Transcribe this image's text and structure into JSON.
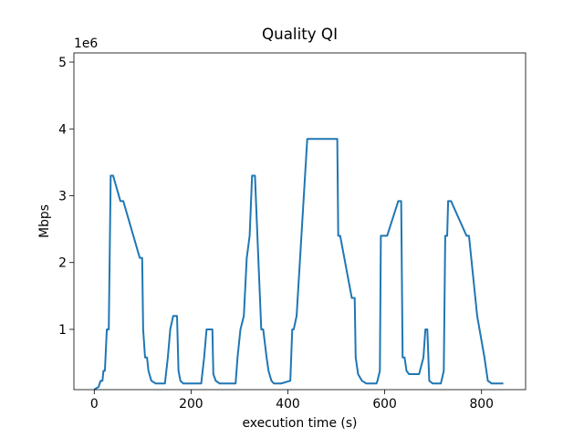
{
  "chart_data": {
    "type": "line",
    "title": "Quality QI",
    "x_label": "execution time (s)",
    "y_label": "Mbps",
    "y_offset_label": "1e6",
    "x": [
      0,
      9,
      13,
      17,
      19,
      22,
      26,
      30,
      34,
      39,
      54,
      60,
      94,
      99,
      101,
      105,
      109,
      112,
      118,
      127,
      146,
      152,
      157,
      163,
      171,
      174,
      178,
      184,
      221,
      227,
      232,
      244,
      246,
      251,
      259,
      292,
      296,
      302,
      309,
      315,
      321,
      326,
      332,
      337,
      345,
      349,
      356,
      360,
      366,
      371,
      386,
      405,
      409,
      412,
      418,
      440,
      502,
      504,
      508,
      532,
      538,
      540,
      545,
      553,
      562,
      583,
      585,
      590,
      592,
      605,
      628,
      634,
      637,
      641,
      645,
      650,
      671,
      680,
      684,
      688,
      692,
      699,
      716,
      722,
      725,
      729,
      731,
      737,
      769,
      774,
      791,
      806,
      813,
      821,
      845
    ],
    "series": [
      {
        "color": "#1f77b4",
        "values": [
          100000,
          140000,
          230000,
          230000,
          380000,
          380000,
          1000000,
          1000000,
          3300000,
          3300000,
          2920000,
          2920000,
          2070000,
          2070000,
          1000000,
          580000,
          580000,
          380000,
          230000,
          190000,
          190000,
          580000,
          1000000,
          1200000,
          1200000,
          380000,
          230000,
          190000,
          190000,
          580000,
          1000000,
          1000000,
          330000,
          230000,
          190000,
          190000,
          580000,
          1000000,
          1200000,
          2070000,
          2400000,
          3300000,
          3300000,
          2400000,
          1000000,
          1000000,
          580000,
          380000,
          230000,
          190000,
          190000,
          230000,
          1000000,
          1000000,
          1200000,
          3850000,
          3850000,
          2400000,
          2400000,
          1470000,
          1470000,
          580000,
          330000,
          230000,
          190000,
          190000,
          230000,
          380000,
          2400000,
          2400000,
          2920000,
          2920000,
          580000,
          580000,
          380000,
          330000,
          330000,
          580000,
          1000000,
          1000000,
          230000,
          190000,
          190000,
          380000,
          2400000,
          2400000,
          2920000,
          2920000,
          2400000,
          2400000,
          1200000,
          580000,
          230000,
          190000,
          190000
        ]
      }
    ],
    "xlim": [
      -42,
      891
    ],
    "xticks": [
      0,
      200,
      400,
      600,
      800
    ],
    "ylim": [
      98000,
      5137000
    ],
    "yticks": [
      {
        "value": 1000000,
        "label": "1"
      },
      {
        "value": 2000000,
        "label": "2"
      },
      {
        "value": 3000000,
        "label": "3"
      },
      {
        "value": 4000000,
        "label": "4"
      },
      {
        "value": 5000000,
        "label": "5"
      }
    ],
    "grid": false
  }
}
